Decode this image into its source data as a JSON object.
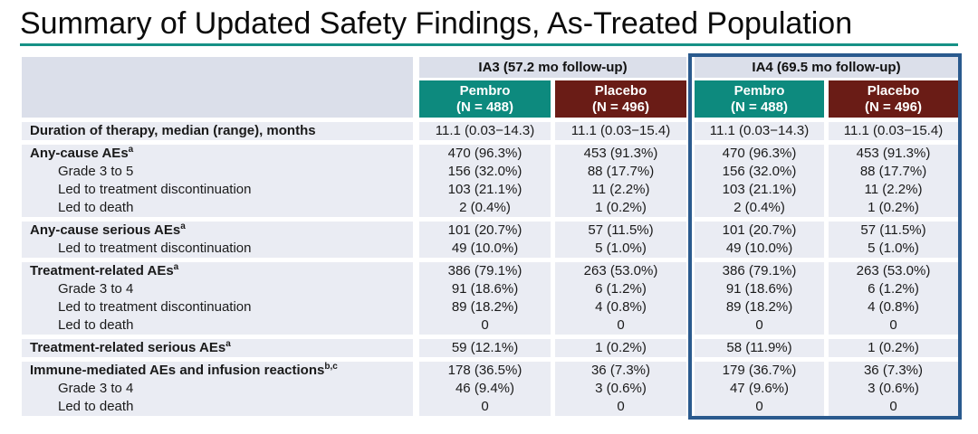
{
  "title": "Summary of Updated Safety Findings, As-Treated Population",
  "colors": {
    "pembro_teal": "#0d8a7e",
    "placebo_maroon": "#6a1c16",
    "ia4_highlight_border": "#2a5a8e",
    "title_underline": "#169186",
    "header_cell_bg": "#dbdfea",
    "row_stripe_bg": "#eaecf3"
  },
  "table": {
    "column_groups": [
      {
        "label": "IA3 (57.2 mo follow-up)",
        "highlighted": false,
        "columns": [
          {
            "arm": "Pembro",
            "n": "(N = 488)"
          },
          {
            "arm": "Placebo",
            "n": "(N = 496)"
          }
        ]
      },
      {
        "label": "IA4 (69.5 mo follow-up)",
        "highlighted": true,
        "columns": [
          {
            "arm": "Pembro",
            "n": "(N = 488)"
          },
          {
            "arm": "Placebo",
            "n": "(N = 496)"
          }
        ]
      }
    ],
    "row_groups": [
      {
        "rows": [
          {
            "label": "Duration of therapy, median (range), months",
            "sup": "",
            "bold": true,
            "indent": false,
            "values": [
              "11.1 (0.03−14.3)",
              "11.1 (0.03−15.4)",
              "11.1 (0.03−14.3)",
              "11.1 (0.03−15.4)"
            ]
          }
        ]
      },
      {
        "rows": [
          {
            "label": "Any-cause AEs",
            "sup": "a",
            "bold": true,
            "indent": false,
            "values": [
              "470 (96.3%)",
              "453 (91.3%)",
              "470 (96.3%)",
              "453 (91.3%)"
            ]
          },
          {
            "label": "Grade 3 to 5",
            "sup": "",
            "bold": false,
            "indent": true,
            "values": [
              "156 (32.0%)",
              "88 (17.7%)",
              "156 (32.0%)",
              "88 (17.7%)"
            ]
          },
          {
            "label": "Led to treatment discontinuation",
            "sup": "",
            "bold": false,
            "indent": true,
            "values": [
              "103 (21.1%)",
              "11 (2.2%)",
              "103 (21.1%)",
              "11 (2.2%)"
            ]
          },
          {
            "label": "Led to death",
            "sup": "",
            "bold": false,
            "indent": true,
            "values": [
              "2 (0.4%)",
              "1 (0.2%)",
              "2 (0.4%)",
              "1 (0.2%)"
            ]
          }
        ]
      },
      {
        "rows": [
          {
            "label": "Any-cause serious AEs",
            "sup": "a",
            "bold": true,
            "indent": false,
            "values": [
              "101 (20.7%)",
              "57 (11.5%)",
              "101 (20.7%)",
              "57 (11.5%)"
            ]
          },
          {
            "label": "Led to treatment discontinuation",
            "sup": "",
            "bold": false,
            "indent": true,
            "values": [
              "49 (10.0%)",
              "5 (1.0%)",
              "49 (10.0%)",
              "5 (1.0%)"
            ]
          }
        ]
      },
      {
        "rows": [
          {
            "label": "Treatment-related AEs",
            "sup": "a",
            "bold": true,
            "indent": false,
            "values": [
              "386 (79.1%)",
              "263 (53.0%)",
              "386 (79.1%)",
              "263 (53.0%)"
            ]
          },
          {
            "label": "Grade 3 to 4",
            "sup": "",
            "bold": false,
            "indent": true,
            "values": [
              "91 (18.6%)",
              "6 (1.2%)",
              "91 (18.6%)",
              "6 (1.2%)"
            ]
          },
          {
            "label": "Led to treatment discontinuation",
            "sup": "",
            "bold": false,
            "indent": true,
            "values": [
              "89 (18.2%)",
              "4 (0.8%)",
              "89 (18.2%)",
              "4 (0.8%)"
            ]
          },
          {
            "label": "Led to death",
            "sup": "",
            "bold": false,
            "indent": true,
            "values": [
              "0",
              "0",
              "0",
              "0"
            ]
          }
        ]
      },
      {
        "rows": [
          {
            "label": "Treatment-related serious AEs",
            "sup": "a",
            "bold": true,
            "indent": false,
            "values": [
              "59 (12.1%)",
              "1 (0.2%)",
              "58 (11.9%)",
              "1 (0.2%)"
            ]
          }
        ]
      },
      {
        "rows": [
          {
            "label": "Immune-mediated AEs and infusion reactions",
            "sup": "b,c",
            "bold": true,
            "indent": false,
            "values": [
              "178 (36.5%)",
              "36 (7.3%)",
              "179 (36.7%)",
              "36 (7.3%)"
            ]
          },
          {
            "label": "Grade 3 to 4",
            "sup": "",
            "bold": false,
            "indent": true,
            "values": [
              "46 (9.4%)",
              "3 (0.6%)",
              "47 (9.6%)",
              "3 (0.6%)"
            ]
          },
          {
            "label": "Led to death",
            "sup": "",
            "bold": false,
            "indent": true,
            "values": [
              "0",
              "0",
              "0",
              "0"
            ]
          }
        ]
      }
    ]
  }
}
